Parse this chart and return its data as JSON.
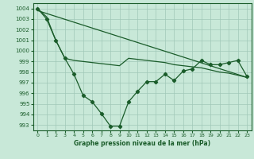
{
  "title": "Graphe pression niveau de la mer (hPa)",
  "bg_color": "#c8e8d8",
  "grid_color": "#a0c8b8",
  "line_color": "#1a5c2a",
  "xlim": [
    -0.5,
    23.5
  ],
  "ylim": [
    992.5,
    1004.5
  ],
  "yticks": [
    993,
    994,
    995,
    996,
    997,
    998,
    999,
    1000,
    1001,
    1002,
    1003,
    1004
  ],
  "xticks": [
    0,
    1,
    2,
    3,
    4,
    5,
    6,
    7,
    8,
    9,
    10,
    11,
    12,
    13,
    14,
    15,
    16,
    17,
    18,
    19,
    20,
    21,
    22,
    23
  ],
  "series1_x": [
    0,
    1,
    2,
    3,
    4,
    5,
    6,
    7,
    8,
    9,
    10,
    11,
    12,
    13,
    14,
    15,
    16,
    17,
    18,
    19,
    20,
    21,
    22,
    23
  ],
  "series1_y": [
    1004.0,
    1003.0,
    1001.0,
    999.3,
    997.8,
    995.8,
    995.2,
    994.1,
    992.9,
    992.9,
    995.2,
    996.2,
    997.1,
    997.1,
    997.8,
    997.2,
    998.1,
    998.3,
    999.1,
    998.7,
    998.7,
    998.9,
    999.1,
    997.6
  ],
  "series2_x": [
    0,
    1,
    2,
    3,
    4,
    5,
    6,
    7,
    8,
    9,
    10,
    11,
    12,
    13,
    14,
    15,
    16,
    17,
    18,
    19,
    20,
    21,
    22,
    23
  ],
  "series2_y": [
    1004.0,
    1003.2,
    1001.0,
    999.3,
    999.1,
    999.0,
    998.9,
    998.8,
    998.7,
    998.6,
    999.3,
    999.2,
    999.1,
    999.0,
    998.9,
    998.7,
    998.6,
    998.5,
    998.4,
    998.2,
    998.0,
    997.9,
    997.7,
    997.5
  ],
  "series3_x": [
    0,
    23
  ],
  "series3_y": [
    1003.8,
    997.5
  ]
}
